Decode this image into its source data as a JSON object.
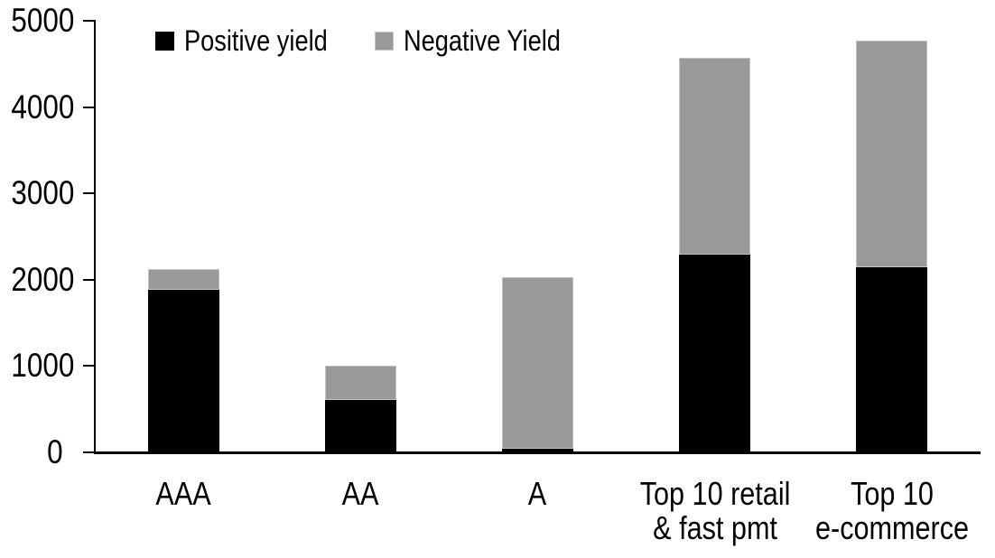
{
  "chart_data": {
    "type": "bar",
    "stacked": true,
    "categories": [
      "AAA",
      "AA",
      "A",
      "Top 10 retail\n& fast pmt",
      "Top 10\ne-commerce"
    ],
    "series": [
      {
        "name": "Positive yield",
        "color": "#000000",
        "values": [
          1880,
          610,
          40,
          2290,
          2140
        ]
      },
      {
        "name": "Negative Yield",
        "color": "#999999",
        "values": [
          240,
          390,
          1990,
          2280,
          2630
        ]
      }
    ],
    "ylim": [
      0,
      5000
    ],
    "yticks": [
      0,
      1000,
      2000,
      3000,
      4000,
      5000
    ],
    "legend_position": "top-inside",
    "grid": false,
    "axis_color": "#000000",
    "background_color": "#ffffff"
  }
}
